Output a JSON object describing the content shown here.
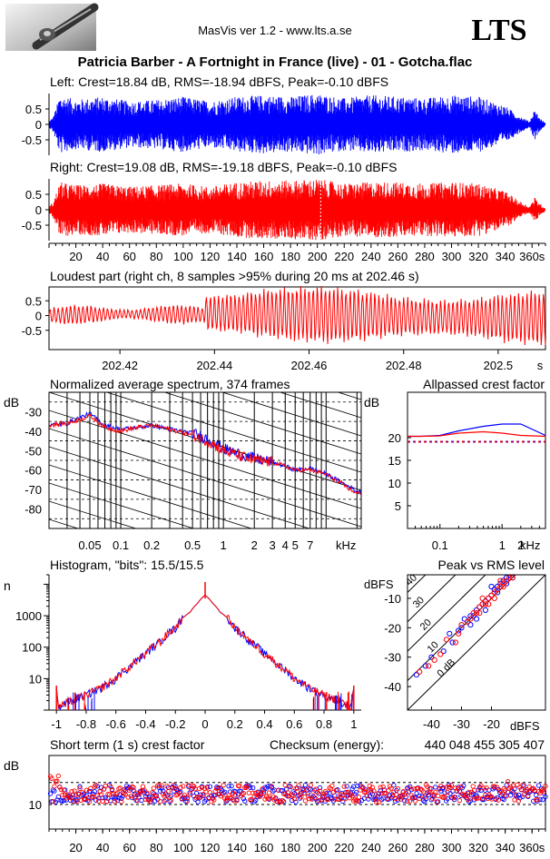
{
  "app": {
    "version_text": "MasVis ver 1.2 - www.lts.a.se",
    "logo": "LTS",
    "file_title": "Patricia Barber - A Fortnight in France (live) - 01 - Gotcha.flac",
    "checksum_label": "Checksum (energy):",
    "checksum_value": "440 048 455 305 407",
    "icon": "guitar-jack-photo"
  },
  "colors": {
    "left": "#0000ff",
    "right": "#ff0000",
    "axis": "#000000",
    "background": "#ffffff"
  },
  "chart_data": [
    {
      "id": "left-waveform",
      "type": "area",
      "title": "Left: Crest=18.84 dB, RMS=-18.94 dBFS, Peak=-0.10 dBFS",
      "yticks": [
        "0.5",
        "0",
        "-0.5"
      ],
      "ylim": [
        -1,
        1
      ],
      "xlim": [
        0,
        370
      ],
      "duration_s": 370,
      "envelope_x": [
        0,
        3,
        5,
        8,
        20,
        40,
        60,
        80,
        100,
        120,
        140,
        160,
        180,
        200,
        220,
        240,
        260,
        280,
        300,
        320,
        340,
        350,
        358,
        362,
        366,
        370
      ],
      "envelope_y": [
        0.1,
        0.25,
        0.5,
        0.95,
        0.8,
        0.9,
        0.75,
        0.8,
        0.9,
        0.75,
        0.9,
        0.95,
        0.9,
        1.0,
        0.85,
        0.95,
        0.9,
        0.85,
        0.95,
        0.9,
        0.6,
        0.3,
        0.1,
        0.5,
        0.2,
        0.05
      ],
      "color": "#0000ff"
    },
    {
      "id": "right-waveform",
      "type": "area",
      "title": "Right: Crest=19.08 dB, RMS=-19.18 dBFS, Peak=-0.10 dBFS",
      "yticks": [
        "0.5",
        "0",
        "-0.5"
      ],
      "ylim": [
        -1,
        1
      ],
      "xlim": [
        0,
        370
      ],
      "xticks": [
        "20",
        "40",
        "60",
        "80",
        "100",
        "120",
        "140",
        "160",
        "180",
        "200",
        "220",
        "240",
        "260",
        "280",
        "300",
        "320",
        "340",
        "360s"
      ],
      "envelope_x": [
        0,
        3,
        5,
        8,
        20,
        40,
        60,
        80,
        100,
        120,
        140,
        160,
        180,
        200,
        220,
        240,
        260,
        280,
        300,
        320,
        340,
        350,
        358,
        362,
        366,
        370
      ],
      "envelope_y": [
        0.1,
        0.25,
        0.5,
        0.9,
        0.8,
        0.85,
        0.75,
        0.8,
        0.85,
        0.75,
        0.9,
        0.95,
        0.95,
        1.0,
        0.85,
        0.9,
        0.9,
        0.85,
        0.9,
        0.85,
        0.6,
        0.3,
        0.1,
        0.4,
        0.2,
        0.05
      ],
      "marker_s": 202.46,
      "color": "#ff0000"
    },
    {
      "id": "loudest-part",
      "type": "line",
      "title": "Loudest part (right ch, 8 samples >95% during 20 ms at 202.46 s)",
      "yticks": [
        "0.5",
        "0",
        "-0.5"
      ],
      "ylim": [
        -1,
        1
      ],
      "xlim": [
        202.405,
        202.51
      ],
      "xticks": [
        "202.42",
        "202.44",
        "202.46",
        "202.48",
        "202.5",
        "s"
      ],
      "xtick_values": [
        202.42,
        202.44,
        202.46,
        202.48,
        202.5
      ],
      "color": "#ff0000"
    },
    {
      "id": "spectrum",
      "type": "line",
      "title": "Normalized average spectrum, 374 frames",
      "ylabel": "dB",
      "yticks": [
        "-30",
        "-40",
        "-50",
        "-60",
        "-70",
        "-80"
      ],
      "ylim": [
        -90,
        -20
      ],
      "xlabel": "kHz",
      "xticks": [
        "0.05",
        "0.1",
        "0.2",
        "0.5",
        "1",
        "2",
        "3",
        "4",
        "5",
        "7"
      ],
      "xtick_values": [
        0.05,
        0.1,
        0.2,
        0.5,
        1,
        2,
        3,
        4,
        5,
        7
      ],
      "xlim_khz": [
        0.02,
        22
      ],
      "series": [
        {
          "name": "Left",
          "freq_khz": [
            0.02,
            0.03,
            0.04,
            0.05,
            0.07,
            0.1,
            0.15,
            0.2,
            0.3,
            0.5,
            0.7,
            1,
            1.5,
            2,
            3,
            4,
            5,
            7,
            10,
            15,
            20
          ],
          "db": [
            -37,
            -36,
            -33,
            -31,
            -37,
            -39,
            -38,
            -37,
            -39,
            -41,
            -44,
            -49,
            -52,
            -54,
            -56,
            -58,
            -60,
            -59,
            -62,
            -67,
            -71
          ],
          "color": "#0000ff"
        },
        {
          "name": "Right",
          "freq_khz": [
            0.02,
            0.03,
            0.04,
            0.05,
            0.07,
            0.1,
            0.15,
            0.2,
            0.3,
            0.5,
            0.7,
            1,
            1.5,
            2,
            3,
            4,
            5,
            7,
            10,
            15,
            20
          ],
          "db": [
            -37,
            -36,
            -34,
            -32,
            -38,
            -40,
            -38,
            -37,
            -39,
            -42,
            -45,
            -50,
            -53,
            -55,
            -56,
            -58,
            -60,
            -60,
            -62,
            -68,
            -72
          ],
          "color": "#ff0000"
        }
      ]
    },
    {
      "id": "allpassed-crest",
      "type": "line",
      "title": "Allpassed crest factor",
      "ylabel": "dB",
      "yticks": [
        "20",
        "15",
        "10",
        "5"
      ],
      "ylim": [
        0,
        30
      ],
      "xlabel": "kHz",
      "xticks": [
        "0.1",
        "1",
        "2"
      ],
      "xtick_values": [
        0.1,
        1,
        2
      ],
      "xlim_khz": [
        0.03,
        5
      ],
      "series": [
        {
          "name": "Left",
          "freq_khz": [
            0.03,
            0.05,
            0.1,
            0.2,
            0.5,
            1,
            2,
            5
          ],
          "db": [
            20.3,
            20.3,
            20.5,
            21.5,
            22.5,
            23,
            23,
            20.5
          ],
          "color": "#0000ff"
        },
        {
          "name": "Right",
          "freq_khz": [
            0.03,
            0.05,
            0.1,
            0.2,
            0.5,
            1,
            2,
            5
          ],
          "db": [
            20.3,
            20.3,
            20.4,
            21,
            21.3,
            21,
            20.5,
            20.3
          ],
          "color": "#ff0000"
        }
      ],
      "reference_db": 19.1
    },
    {
      "id": "histogram",
      "type": "line",
      "title": "Histogram, \"bits\": 15.5/15.5",
      "ylabel": "n",
      "yticks": [
        "1000",
        "100",
        "10"
      ],
      "ylog": true,
      "ylim": [
        1,
        20000
      ],
      "xlim": [
        -1.05,
        1.05
      ],
      "xticks": [
        "-1",
        "-0.8",
        "-0.6",
        "-0.4",
        "-0.2",
        "0",
        "0.2",
        "0.4",
        "0.6",
        "0.8",
        "1"
      ],
      "xtick_values": [
        -1,
        -0.8,
        -0.6,
        -0.4,
        -0.2,
        0,
        0.2,
        0.4,
        0.6,
        0.8,
        1
      ],
      "abs_x": [
        0,
        0.05,
        0.1,
        0.2,
        0.3,
        0.4,
        0.5,
        0.6,
        0.7,
        0.8,
        0.9,
        0.95,
        0.99,
        1.0
      ],
      "n": [
        4500,
        2500,
        1300,
        400,
        150,
        60,
        25,
        10,
        5,
        3,
        2,
        1.5,
        1.2,
        6
      ],
      "color_left": "#0000ff",
      "color_right": "#ff0000"
    },
    {
      "id": "peak-vs-rms",
      "type": "scatter",
      "title": "Peak vs RMS level",
      "ylabel": "dBFS",
      "yticks": [
        "-10",
        "-20",
        "-30",
        "-40"
      ],
      "ylim": [
        -48,
        -2
      ],
      "xlabel": "dBFS",
      "xticks": [
        "-40",
        "-30",
        "-20"
      ],
      "xlim": [
        -48,
        -2
      ],
      "diagonal_labels": [
        "40",
        "30",
        "20",
        "10",
        "0 dB"
      ],
      "series": [
        {
          "name": "Left",
          "color": "#0000ff",
          "rms_dbfs": [
            -45,
            -42,
            -40,
            -36,
            -34,
            -33,
            -31,
            -30,
            -29,
            -28,
            -27,
            -26,
            -25,
            -24,
            -23,
            -22,
            -21,
            -20,
            -19,
            -18,
            -17,
            -16,
            -15,
            -14,
            -13,
            -22,
            -25,
            -27,
            -20,
            -18,
            -15
          ],
          "peak_dbfs": [
            -36,
            -33,
            -30,
            -28,
            -22,
            -25,
            -21,
            -20,
            -17,
            -18,
            -16,
            -16,
            -14,
            -13,
            -12,
            -11,
            -10,
            -9,
            -7,
            -6,
            -5,
            -4,
            -3,
            -2,
            -3,
            -14,
            -17,
            -19,
            -6,
            -8,
            -5
          ]
        },
        {
          "name": "Right",
          "color": "#ff0000",
          "rms_dbfs": [
            -44,
            -41,
            -39,
            -37,
            -35,
            -32,
            -31,
            -30,
            -28,
            -27,
            -26,
            -25,
            -24,
            -23,
            -22,
            -21,
            -20,
            -19,
            -18,
            -17,
            -16,
            -15,
            -14,
            -13,
            -24,
            -23,
            -21,
            -19,
            -17,
            -16
          ],
          "peak_dbfs": [
            -35,
            -33,
            -31,
            -29,
            -24,
            -25,
            -22,
            -19,
            -18,
            -17,
            -15,
            -15,
            -13,
            -12,
            -12,
            -10,
            -9,
            -8,
            -7,
            -6,
            -5,
            -4,
            -3,
            -3,
            -15,
            -10,
            -12,
            -10,
            -4,
            -6
          ]
        }
      ]
    },
    {
      "id": "short-term-crest",
      "type": "scatter",
      "title": "Short term (1 s) crest factor",
      "ylabel": "dB",
      "yticks": [
        "10"
      ],
      "ylim": [
        0,
        30
      ],
      "xlim": [
        0,
        370
      ],
      "xticks": [
        "20",
        "40",
        "60",
        "80",
        "100",
        "120",
        "140",
        "160",
        "180",
        "200",
        "220",
        "240",
        "260",
        "280",
        "300",
        "320",
        "340",
        "360s"
      ],
      "mean_left_db": 14.5,
      "mean_right_db": 14.5,
      "ref_lines_db": [
        19,
        10
      ],
      "spread_db": 3.5,
      "color_left": "#0000ff",
      "color_right": "#ff0000"
    }
  ]
}
